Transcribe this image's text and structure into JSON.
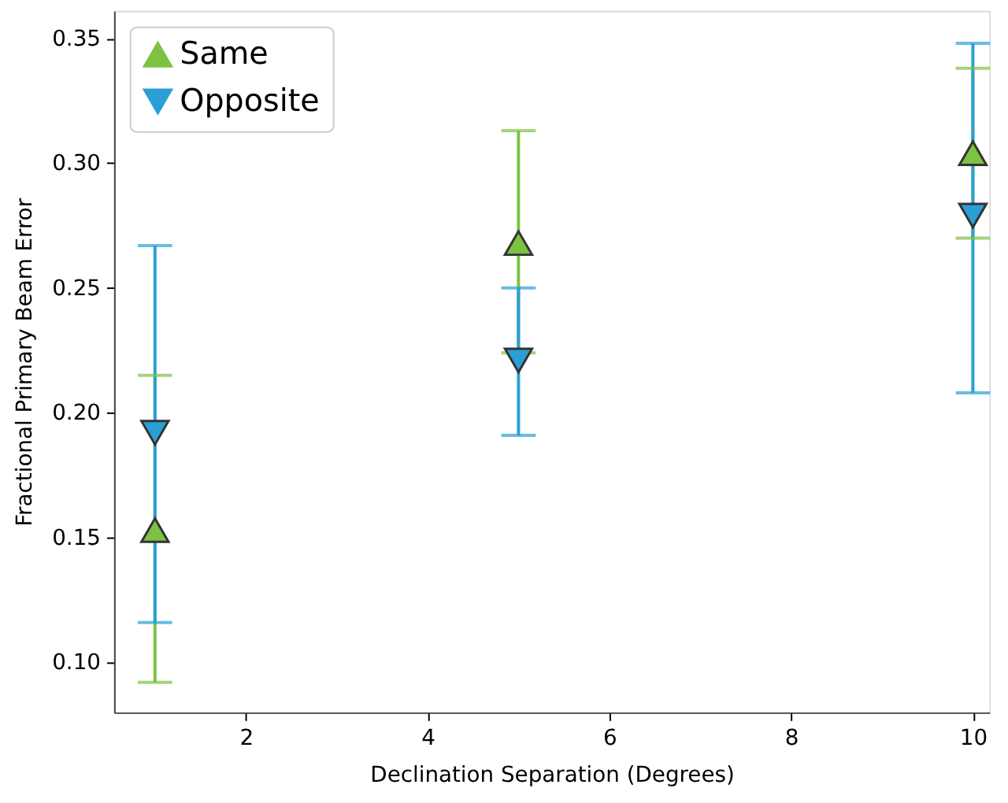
{
  "chart_data": {
    "type": "scatter",
    "xlabel": "Declination Separation (Degrees)",
    "ylabel": "Fractional Primary Beam Error",
    "x": [
      1,
      5,
      10
    ],
    "series": [
      {
        "name": "Same",
        "color": "#7dc242",
        "marker": "triangle",
        "values": [
          0.153,
          0.268,
          0.304
        ],
        "errors": [
          [
            0.092,
            0.215
          ],
          [
            0.224,
            0.313
          ],
          [
            0.27,
            0.338
          ]
        ]
      },
      {
        "name": "Opposite",
        "color": "#2a9fd6",
        "marker": "triangle-down",
        "values": [
          0.192,
          0.221,
          0.279
        ],
        "errors": [
          [
            0.116,
            0.267
          ],
          [
            0.191,
            0.25
          ],
          [
            0.208,
            0.348
          ]
        ]
      }
    ],
    "xlim": [
      0.55,
      10.18
    ],
    "xticks": [
      2,
      4,
      6,
      8,
      10
    ],
    "ylim": [
      0.08,
      0.361
    ],
    "yticks": [
      {
        "value": 0.1,
        "label": "0.10"
      },
      {
        "value": 0.15,
        "label": "0.15"
      },
      {
        "value": 0.2,
        "label": "0.20"
      },
      {
        "value": 0.25,
        "label": "0.25"
      },
      {
        "value": 0.3,
        "label": "0.30"
      },
      {
        "value": 0.35,
        "label": "0.35"
      }
    ],
    "grid": false,
    "legend": "top left"
  }
}
